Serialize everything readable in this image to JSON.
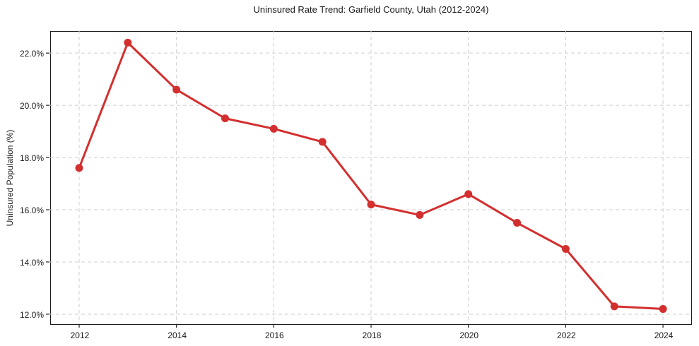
{
  "chart_data": {
    "type": "line",
    "title": "Uninsured Rate Trend: Garfield County, Utah (2012-2024)",
    "xlabel": "",
    "ylabel": "Uninsured Population (%)",
    "x": [
      2012,
      2013,
      2014,
      2015,
      2016,
      2017,
      2018,
      2019,
      2020,
      2021,
      2022,
      2023,
      2024
    ],
    "values": [
      17.6,
      22.4,
      20.6,
      19.5,
      19.1,
      18.6,
      16.2,
      15.8,
      16.6,
      15.5,
      14.5,
      12.3,
      12.2
    ],
    "xlim": [
      2011.39,
      2024.58
    ],
    "ylim": [
      11.62,
      22.87
    ],
    "x_ticks": {
      "values": [
        2012,
        2014,
        2016,
        2018,
        2020,
        2022,
        2024
      ],
      "labels": [
        "2012",
        "2014",
        "2016",
        "2018",
        "2020",
        "2022",
        "2024"
      ]
    },
    "y_ticks": {
      "values": [
        12,
        14,
        16,
        18,
        20,
        22
      ],
      "labels": [
        "12.0%",
        "14.0%",
        "16.0%",
        "18.0%",
        "20.0%",
        "22.0%"
      ]
    },
    "grid": "dashed",
    "legend": "none",
    "line_color": "#d32f2f",
    "marker": "circle",
    "background_color": "#ffffff"
  }
}
